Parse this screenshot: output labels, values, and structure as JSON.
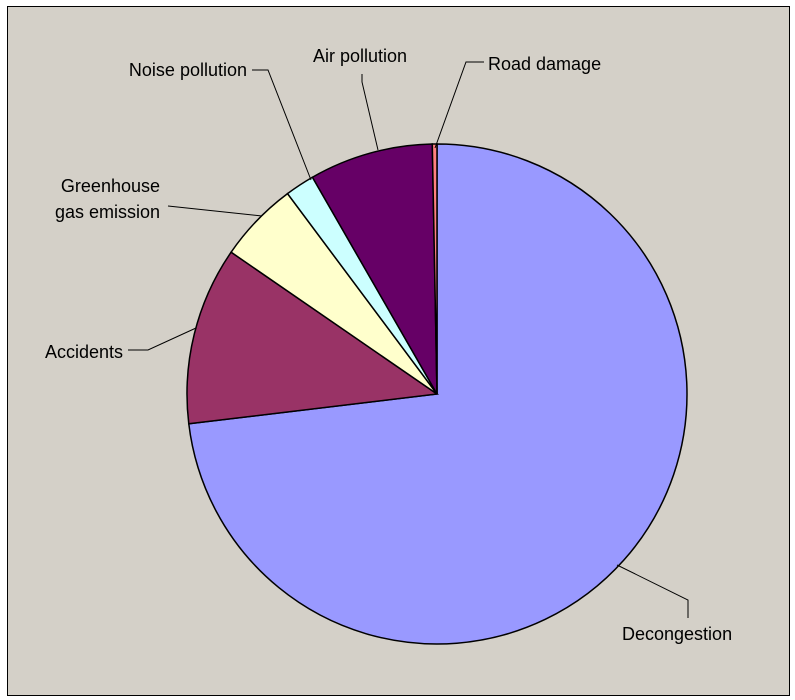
{
  "chart_data": {
    "type": "pie",
    "title": "",
    "slices": [
      {
        "name": "Decongestion",
        "value": 73.1,
        "color": "#9999ff"
      },
      {
        "name": "Accidents",
        "value": 11.5,
        "color": "#993366"
      },
      {
        "name": "Greenhouse gas emission",
        "label_lines": [
          "Greenhouse",
          "gas emission"
        ],
        "value": 5.2,
        "color": "#ffffcc"
      },
      {
        "name": "Noise pollution",
        "value": 1.9,
        "color": "#ccffff"
      },
      {
        "name": "Air pollution",
        "value": 8.0,
        "color": "#660066"
      },
      {
        "name": "Road damage",
        "value": 0.3,
        "color": "#ff8080"
      }
    ],
    "start_angle_deg": 0,
    "direction": "clockwise",
    "legend": "none"
  }
}
